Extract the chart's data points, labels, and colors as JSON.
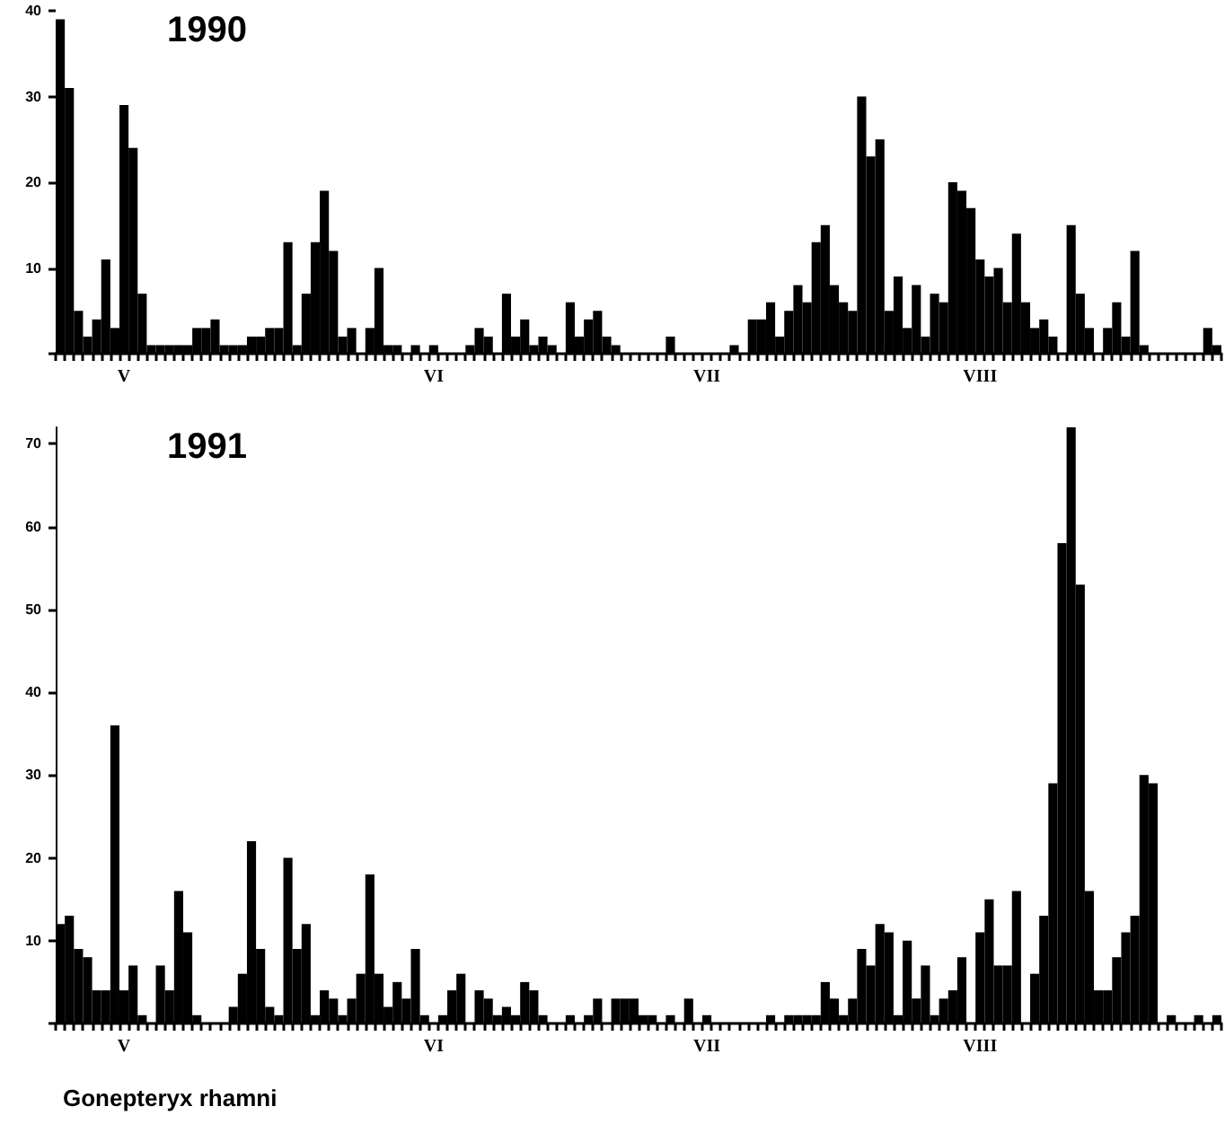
{
  "chart_data": [
    {
      "type": "bar",
      "title": "1990",
      "categories": [
        null,
        null,
        null,
        null,
        null,
        null,
        null,
        "V",
        null,
        null,
        null,
        null,
        null,
        null,
        null,
        null,
        null,
        null,
        null,
        null,
        null,
        null,
        null,
        null,
        null,
        null,
        null,
        null,
        null,
        null,
        null,
        null,
        null,
        null,
        null,
        null,
        null,
        null,
        null,
        null,
        null,
        "VI",
        null,
        null,
        null,
        null,
        null,
        null,
        null,
        null,
        null,
        null,
        null,
        null,
        null,
        null,
        null,
        null,
        null,
        null,
        null,
        null,
        null,
        null,
        null,
        null,
        null,
        null,
        null,
        null,
        null,
        "VII",
        null,
        null,
        null,
        null,
        null,
        null,
        null,
        null,
        null,
        null,
        null,
        null,
        null,
        null,
        null,
        null,
        null,
        null,
        null,
        null,
        null,
        null,
        null,
        null,
        null,
        null,
        null,
        null,
        null,
        "VIII",
        null,
        null,
        null,
        null,
        null,
        null,
        null,
        null,
        null,
        null,
        null,
        null,
        null,
        null,
        null,
        null,
        null,
        null,
        null,
        null,
        null,
        null,
        null,
        null,
        null,
        null
      ],
      "values": [
        39,
        31,
        5,
        2,
        4,
        11,
        3,
        29,
        24,
        7,
        1,
        1,
        1,
        1,
        1,
        3,
        3,
        4,
        1,
        1,
        1,
        2,
        2,
        3,
        3,
        13,
        1,
        7,
        13,
        19,
        12,
        2,
        3,
        0,
        3,
        10,
        1,
        1,
        0,
        1,
        0,
        1,
        0,
        0,
        0,
        1,
        3,
        2,
        0,
        7,
        2,
        4,
        1,
        2,
        1,
        0,
        6,
        2,
        4,
        5,
        2,
        1,
        0,
        0,
        0,
        0,
        0,
        2,
        0,
        0,
        0,
        0,
        0,
        0,
        1,
        0,
        4,
        4,
        6,
        2,
        5,
        8,
        6,
        13,
        15,
        8,
        6,
        5,
        30,
        23,
        25,
        5,
        9,
        3,
        8,
        2,
        7,
        6,
        20,
        19,
        17,
        11,
        9,
        10,
        6,
        14,
        6,
        3,
        4,
        2,
        0,
        15,
        7,
        3,
        0,
        3,
        6,
        2,
        12,
        1,
        0,
        0,
        0,
        0,
        0,
        0,
        3,
        1
      ],
      "color": "#000000",
      "ylim": [
        0,
        40
      ],
      "yticks": [
        {
          "value": 0,
          "label": null
        },
        10,
        20,
        30,
        40
      ]
    },
    {
      "type": "bar",
      "title": "1991",
      "categories": [
        null,
        null,
        null,
        null,
        null,
        null,
        null,
        "V",
        null,
        null,
        null,
        null,
        null,
        null,
        null,
        null,
        null,
        null,
        null,
        null,
        null,
        null,
        null,
        null,
        null,
        null,
        null,
        null,
        null,
        null,
        null,
        null,
        null,
        null,
        null,
        null,
        null,
        null,
        null,
        null,
        null,
        "VI",
        null,
        null,
        null,
        null,
        null,
        null,
        null,
        null,
        null,
        null,
        null,
        null,
        null,
        null,
        null,
        null,
        null,
        null,
        null,
        null,
        null,
        null,
        null,
        null,
        null,
        null,
        null,
        null,
        null,
        "VII",
        null,
        null,
        null,
        null,
        null,
        null,
        null,
        null,
        null,
        null,
        null,
        null,
        null,
        null,
        null,
        null,
        null,
        null,
        null,
        null,
        null,
        null,
        null,
        null,
        null,
        null,
        null,
        null,
        null,
        "VIII",
        null,
        null,
        null,
        null,
        null,
        null,
        null,
        null,
        null,
        null,
        null,
        null,
        null,
        null,
        null,
        null,
        null,
        null,
        null,
        null,
        null,
        null,
        null,
        null,
        null,
        null
      ],
      "values": [
        12,
        13,
        9,
        8,
        4,
        4,
        36,
        4,
        7,
        1,
        0,
        7,
        4,
        16,
        11,
        1,
        0,
        0,
        0,
        2,
        6,
        22,
        9,
        2,
        1,
        20,
        9,
        12,
        1,
        4,
        3,
        1,
        3,
        6,
        18,
        6,
        2,
        5,
        3,
        9,
        1,
        0,
        1,
        4,
        6,
        0,
        4,
        3,
        1,
        2,
        1,
        5,
        4,
        1,
        0,
        0,
        1,
        0,
        1,
        3,
        0,
        3,
        3,
        3,
        1,
        1,
        0,
        1,
        0,
        3,
        0,
        1,
        0,
        0,
        0,
        0,
        0,
        0,
        1,
        0,
        1,
        1,
        1,
        1,
        5,
        3,
        1,
        3,
        9,
        7,
        12,
        11,
        1,
        10,
        3,
        7,
        1,
        3,
        4,
        8,
        0,
        11,
        15,
        7,
        7,
        16,
        0,
        6,
        13,
        29,
        58,
        72,
        53,
        16,
        4,
        4,
        8,
        11,
        13,
        30,
        29,
        0,
        1,
        0,
        0,
        1,
        0,
        1
      ],
      "color": "#000000",
      "ylim": [
        0,
        72
      ],
      "yticks": [
        {
          "value": 0,
          "label": null
        },
        10,
        20,
        30,
        40,
        50,
        60,
        70
      ],
      "annotations": [
        "Gonepteryx rhamni"
      ]
    }
  ]
}
